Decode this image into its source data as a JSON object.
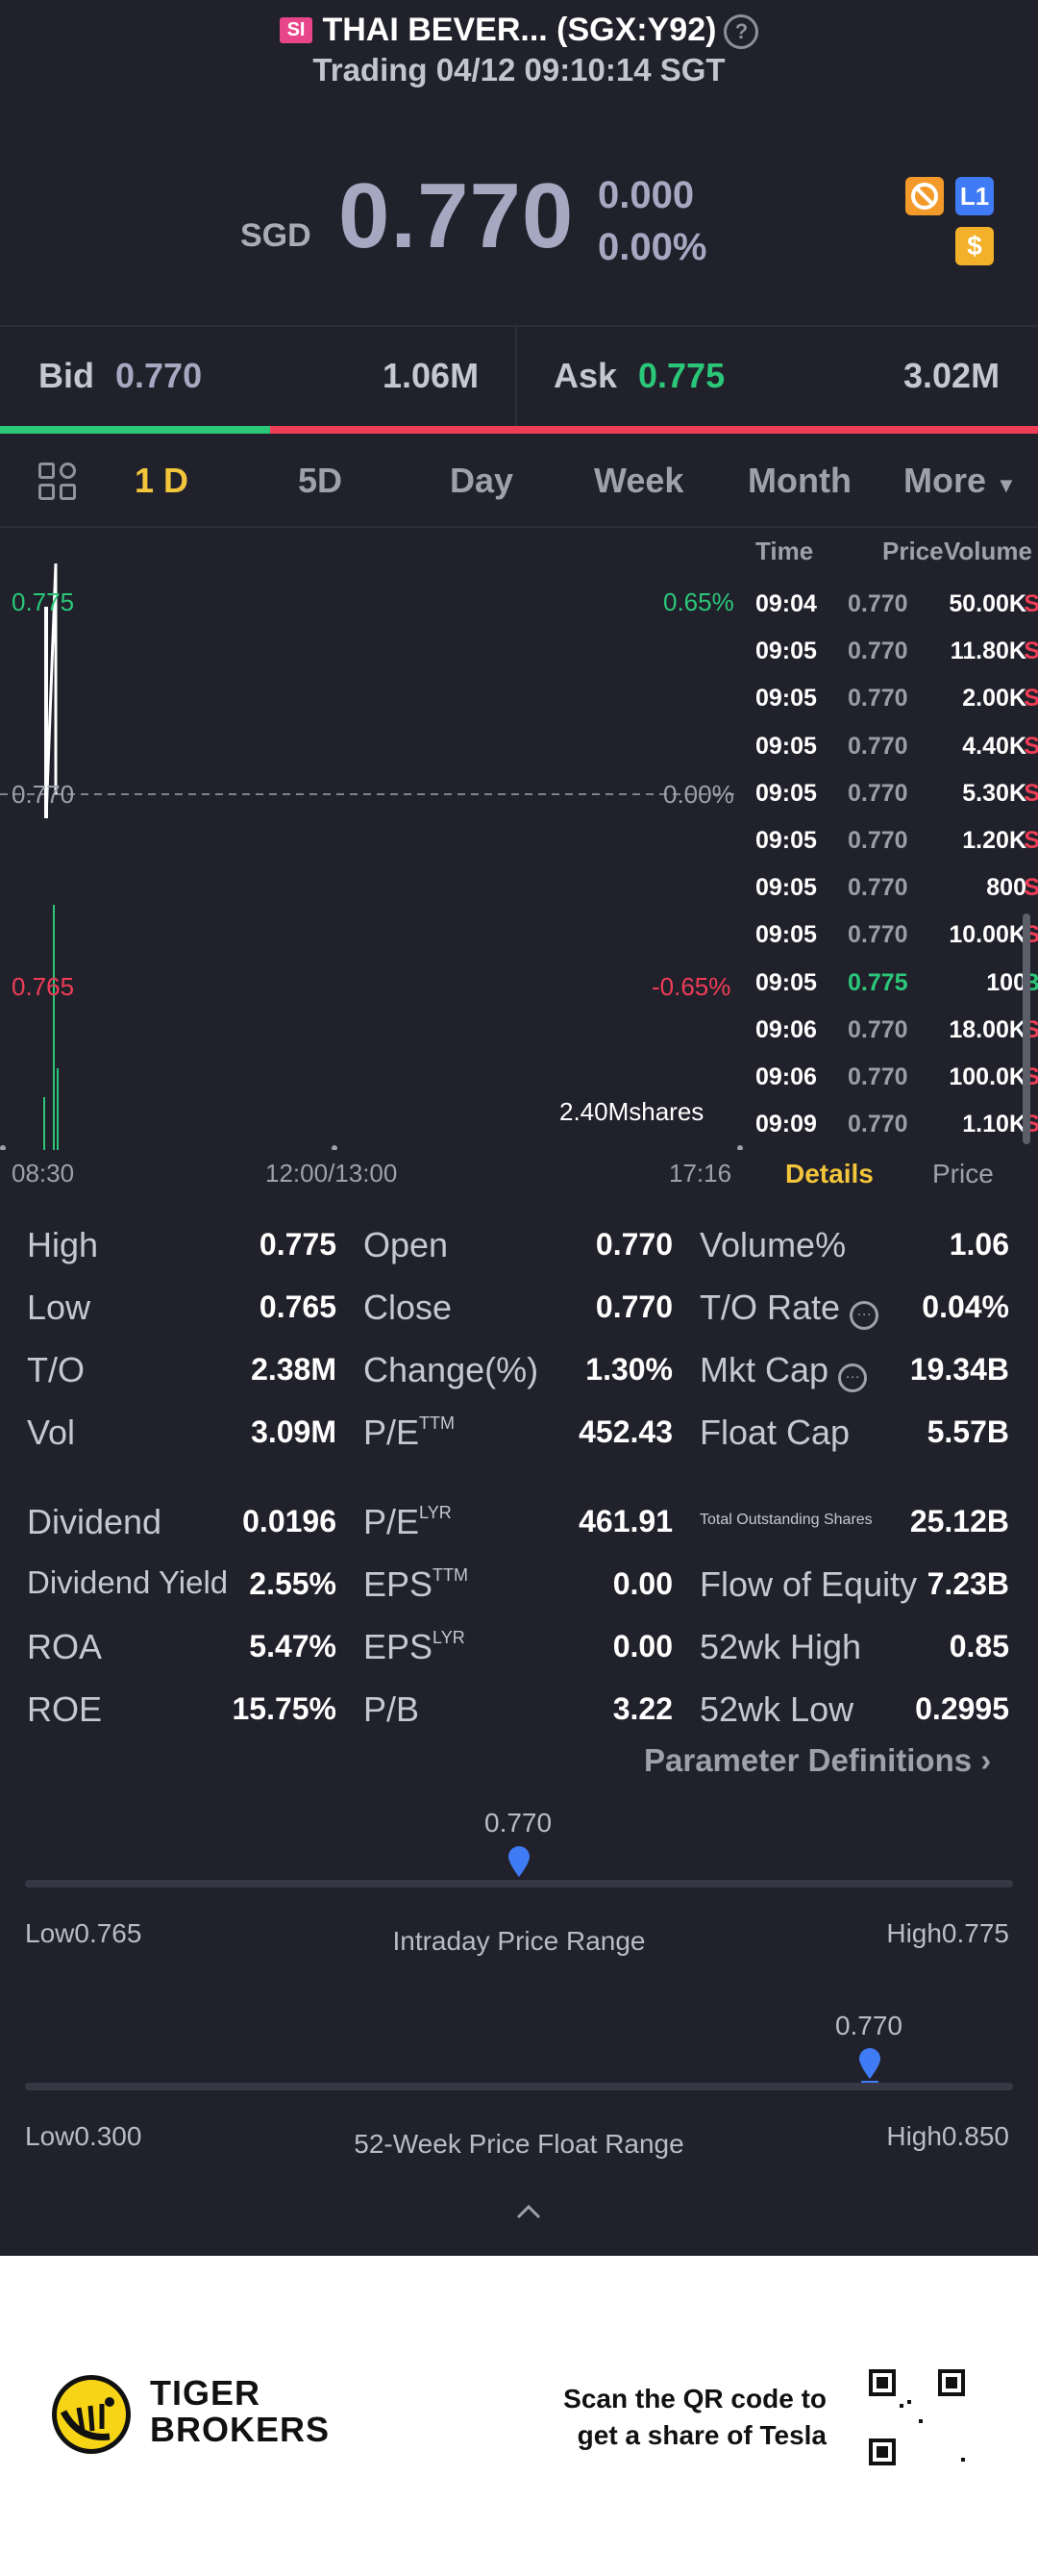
{
  "header": {
    "badge": "SI",
    "title": "THAI BEVER... (SGX:Y92)",
    "subtitle": "Trading 04/12 09:10:14 SGT"
  },
  "quote": {
    "currency": "SGD",
    "price": "0.770",
    "change": "0.000",
    "change_pct": "0.00%"
  },
  "badges": {
    "l1": "L1",
    "dollar": "$"
  },
  "bidask": {
    "bid_label": "Bid",
    "bid_price": "0.770",
    "bid_size": "1.06M",
    "ask_label": "Ask",
    "ask_price": "0.775",
    "ask_size": "3.02M",
    "bid_ratio": 0.26
  },
  "tabs": [
    "1 D",
    "5D",
    "Day",
    "Week",
    "Month",
    "More"
  ],
  "chart": {
    "y_high": "0.775",
    "y_mid": "0.770",
    "y_low": "0.765",
    "pct_high": "0.65%",
    "pct_mid": "0.00%",
    "pct_low": "-0.65%",
    "volume_label": "2.40Mshares",
    "x_start": "08:30",
    "x_mid": "12:00/13:00",
    "x_end": "17:16"
  },
  "chart_data": {
    "type": "line",
    "x": [
      "09:04",
      "09:05",
      "09:06",
      "09:09"
    ],
    "y_range": [
      0.765,
      0.775
    ],
    "pct_range": [
      "-0.65%",
      "0.65%"
    ],
    "prev_close": 0.77,
    "x_ticks": [
      "08:30",
      "12:00/13:00",
      "17:16"
    ],
    "volume_max_label": "2.40Mshares"
  },
  "trades": {
    "headers": {
      "time": "Time",
      "price": "Price",
      "volume": "Volume"
    },
    "rows": [
      {
        "time": "09:04",
        "price": "0.770",
        "volume": "50.00K",
        "side": "S"
      },
      {
        "time": "09:05",
        "price": "0.770",
        "volume": "11.80K",
        "side": "S"
      },
      {
        "time": "09:05",
        "price": "0.770",
        "volume": "2.00K",
        "side": "S"
      },
      {
        "time": "09:05",
        "price": "0.770",
        "volume": "4.40K",
        "side": "S"
      },
      {
        "time": "09:05",
        "price": "0.770",
        "volume": "5.30K",
        "side": "S"
      },
      {
        "time": "09:05",
        "price": "0.770",
        "volume": "1.20K",
        "side": "S"
      },
      {
        "time": "09:05",
        "price": "0.770",
        "volume": "800",
        "side": "S"
      },
      {
        "time": "09:05",
        "price": "0.770",
        "volume": "10.00K",
        "side": "S"
      },
      {
        "time": "09:05",
        "price": "0.775",
        "volume": "100",
        "side": "B"
      },
      {
        "time": "09:06",
        "price": "0.770",
        "volume": "18.00K",
        "side": "S"
      },
      {
        "time": "09:06",
        "price": "0.770",
        "volume": "100.0K",
        "side": "S"
      },
      {
        "time": "09:09",
        "price": "0.770",
        "volume": "1.10K",
        "side": "S"
      }
    ],
    "tab_details": "Details",
    "tab_price": "Price"
  },
  "stats": {
    "high_l": "High",
    "high_v": "0.775",
    "low_l": "Low",
    "low_v": "0.765",
    "to_l": "T/O",
    "to_v": "2.38M",
    "vol_l": "Vol",
    "vol_v": "3.09M",
    "open_l": "Open",
    "open_v": "0.770",
    "close_l": "Close",
    "close_v": "0.770",
    "chg_l": "Change(%)",
    "chg_v": "1.30%",
    "pe_ttm_l": "P/E",
    "pe_ttm_sup": "TTM",
    "pe_ttm_v": "452.43",
    "volpct_l": "Volume%",
    "volpct_v": "1.06",
    "torate_l": "T/O Rate",
    "torate_v": "0.04%",
    "mktcap_l": "Mkt Cap",
    "mktcap_v": "19.34B",
    "floatcap_l": "Float Cap",
    "floatcap_v": "5.57B",
    "div_l": "Dividend",
    "div_v": "0.0196",
    "divy_l": "Dividend Yield",
    "divy_v": "2.55%",
    "roa_l": "ROA",
    "roa_v": "5.47%",
    "roe_l": "ROE",
    "roe_v": "15.75%",
    "pe_lyr_l": "P/E",
    "pe_lyr_sup": "LYR",
    "pe_lyr_v": "461.91",
    "eps_ttm_l": "EPS",
    "eps_ttm_sup": "TTM",
    "eps_ttm_v": "0.00",
    "eps_lyr_l": "EPS",
    "eps_lyr_sup": "LYR",
    "eps_lyr_v": "0.00",
    "pb_l": "P/B",
    "pb_v": "3.22",
    "tos_l": "Total Outstanding Shares",
    "tos_v": "25.12B",
    "foe_l": "Flow of Equity",
    "foe_v": "7.23B",
    "wk52h_l": "52wk High",
    "wk52h_v": "0.85",
    "wk52l_l": "52wk Low",
    "wk52l_v": "0.2995",
    "param_def": "Parameter Definitions"
  },
  "ranges": {
    "intraday": {
      "title": "Intraday Price Range",
      "low": "Low0.765",
      "high": "High0.775",
      "current": "0.770",
      "position": 0.5
    },
    "week52": {
      "title": "52-Week Price Float Range",
      "low": "Low0.300",
      "high": "High0.850",
      "current": "0.770",
      "position": 0.855
    }
  },
  "footer": {
    "brand_line1": "TIGER",
    "brand_line2": "BROKERS",
    "scan_line1": "Scan the QR code to",
    "scan_line2": "get a share of Tesla"
  },
  "colors": {
    "up": "#2bc779",
    "down": "#ef3d56",
    "accent": "#f3c53a",
    "marker": "#3f7bf5"
  }
}
